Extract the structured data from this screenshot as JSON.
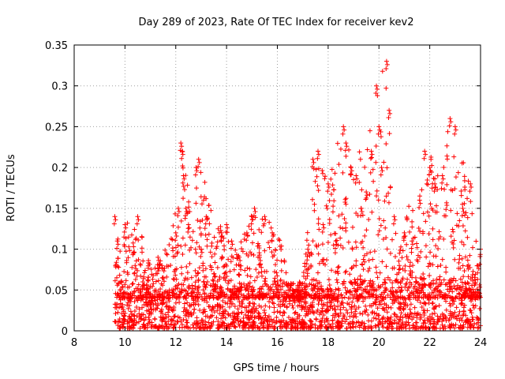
{
  "chart_data": {
    "type": "scatter",
    "title": "Day 289 of 2023, Rate Of TEC Index for receiver kev2",
    "xlabel": "GPS time / hours",
    "ylabel": "ROTI / TECUs",
    "xlim": [
      8,
      24
    ],
    "ylim": [
      0,
      0.35
    ],
    "xticks": [
      "8",
      "10",
      "12",
      "14",
      "16",
      "18",
      "20",
      "22",
      "24"
    ],
    "yticks": [
      "0",
      "0.05",
      "0.1",
      "0.15",
      "0.2",
      "0.25",
      "0.3",
      "0.35"
    ],
    "grid": true,
    "marker": "+",
    "color": "#ff0000",
    "series": [
      {
        "x": [
          9.6,
          9.7,
          9.8,
          9.9,
          10.0,
          10.2,
          10.4,
          10.5,
          10.7,
          11.0,
          11.3,
          11.6,
          11.9,
          12.0,
          12.1,
          12.2,
          12.25,
          12.3,
          12.4,
          12.5,
          12.8,
          12.9,
          13.0,
          13.2,
          13.5,
          13.8,
          14.0,
          14.2,
          14.5,
          14.8,
          15.0,
          15.1,
          15.3,
          15.5,
          15.8,
          16.0,
          16.3,
          16.6,
          16.9,
          17.2,
          17.4,
          17.6,
          17.8,
          18.0,
          18.3,
          18.6,
          18.7,
          18.9,
          19.1,
          19.3,
          19.5,
          19.7,
          19.9,
          20.0,
          20.1,
          20.3,
          20.4,
          20.6,
          20.8,
          21.0,
          21.3,
          21.6,
          21.8,
          22.0,
          22.2,
          22.5,
          22.8,
          23.0,
          23.3,
          23.6,
          23.9,
          24.0
        ],
        "y": [
          0.14,
          0.11,
          0.05,
          0.03,
          0.13,
          0.04,
          0.08,
          0.14,
          0.06,
          0.03,
          0.09,
          0.02,
          0.05,
          0.12,
          0.15,
          0.23,
          0.22,
          0.19,
          0.15,
          0.13,
          0.2,
          0.21,
          0.1,
          0.14,
          0.07,
          0.12,
          0.13,
          0.11,
          0.09,
          0.12,
          0.14,
          0.15,
          0.09,
          0.14,
          0.12,
          0.06,
          0.04,
          0.05,
          0.04,
          0.1,
          0.21,
          0.22,
          0.13,
          0.18,
          0.11,
          0.25,
          0.23,
          0.2,
          0.19,
          0.15,
          0.17,
          0.22,
          0.3,
          0.25,
          0.2,
          0.33,
          0.27,
          0.14,
          0.08,
          0.12,
          0.11,
          0.16,
          0.22,
          0.2,
          0.18,
          0.19,
          0.26,
          0.25,
          0.15,
          0.18,
          0.08,
          0.1
        ]
      }
    ],
    "dense_cloud": [
      {
        "x0": 9.6,
        "x1": 12.0,
        "ymin": 0.0,
        "ymax": 0.045
      },
      {
        "x0": 12.0,
        "x1": 17.2,
        "ymin": 0.0,
        "ymax": 0.055
      },
      {
        "x0": 17.2,
        "x1": 24.0,
        "ymin": 0.0,
        "ymax": 0.06
      }
    ],
    "envelope": [
      {
        "x": 9.6,
        "y": 0.14
      },
      {
        "x": 10.0,
        "y": 0.13
      },
      {
        "x": 10.5,
        "y": 0.14
      },
      {
        "x": 11.0,
        "y": 0.08
      },
      {
        "x": 11.5,
        "y": 0.09
      },
      {
        "x": 12.0,
        "y": 0.15
      },
      {
        "x": 12.3,
        "y": 0.23
      },
      {
        "x": 12.6,
        "y": 0.14
      },
      {
        "x": 13.0,
        "y": 0.21
      },
      {
        "x": 13.5,
        "y": 0.13
      },
      {
        "x": 14.0,
        "y": 0.13
      },
      {
        "x": 14.5,
        "y": 0.11
      },
      {
        "x": 15.0,
        "y": 0.15
      },
      {
        "x": 15.5,
        "y": 0.14
      },
      {
        "x": 16.0,
        "y": 0.13
      },
      {
        "x": 16.5,
        "y": 0.06
      },
      {
        "x": 17.0,
        "y": 0.06
      },
      {
        "x": 17.5,
        "y": 0.22
      },
      {
        "x": 18.0,
        "y": 0.19
      },
      {
        "x": 18.5,
        "y": 0.25
      },
      {
        "x": 19.0,
        "y": 0.21
      },
      {
        "x": 19.5,
        "y": 0.23
      },
      {
        "x": 19.9,
        "y": 0.3
      },
      {
        "x": 20.3,
        "y": 0.33
      },
      {
        "x": 20.7,
        "y": 0.14
      },
      {
        "x": 21.0,
        "y": 0.15
      },
      {
        "x": 21.5,
        "y": 0.16
      },
      {
        "x": 21.9,
        "y": 0.22
      },
      {
        "x": 22.4,
        "y": 0.2
      },
      {
        "x": 22.8,
        "y": 0.26
      },
      {
        "x": 23.0,
        "y": 0.25
      },
      {
        "x": 23.5,
        "y": 0.19
      },
      {
        "x": 24.0,
        "y": 0.1
      }
    ]
  }
}
